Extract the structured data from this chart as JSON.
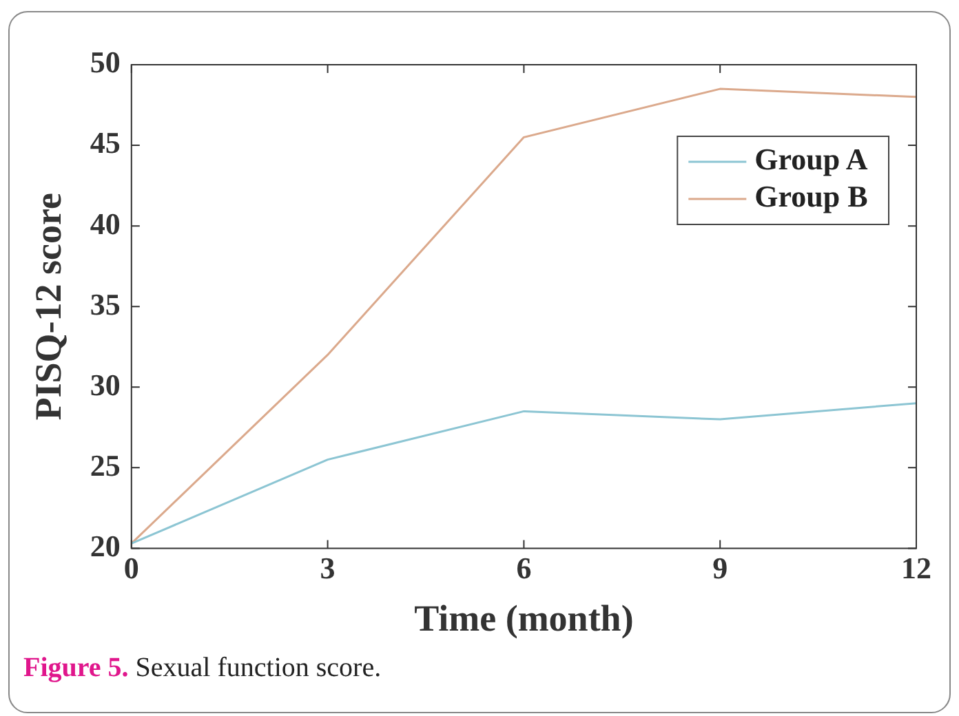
{
  "chart_data": {
    "type": "line",
    "xlabel": "Time (month)",
    "ylabel": "PISQ-12 score",
    "x": [
      0,
      3,
      6,
      9,
      12
    ],
    "series": [
      {
        "name": "Group A",
        "color": "#8cc5d3",
        "values": [
          20.3,
          25.5,
          28.5,
          28,
          29
        ]
      },
      {
        "name": "Group B",
        "color": "#dba98c",
        "values": [
          20.3,
          32,
          45.5,
          48.5,
          48
        ]
      }
    ],
    "xlim": [
      0,
      12
    ],
    "xticks": [
      0,
      3,
      6,
      9,
      12
    ],
    "ylim": [
      20,
      50
    ],
    "yticks": [
      20,
      25,
      30,
      35,
      40,
      45,
      50
    ],
    "grid": false,
    "legend": "top right",
    "marker": "none",
    "line_style": "solid",
    "annotations": [
      "Figure 5.",
      "Sexual function score."
    ]
  }
}
